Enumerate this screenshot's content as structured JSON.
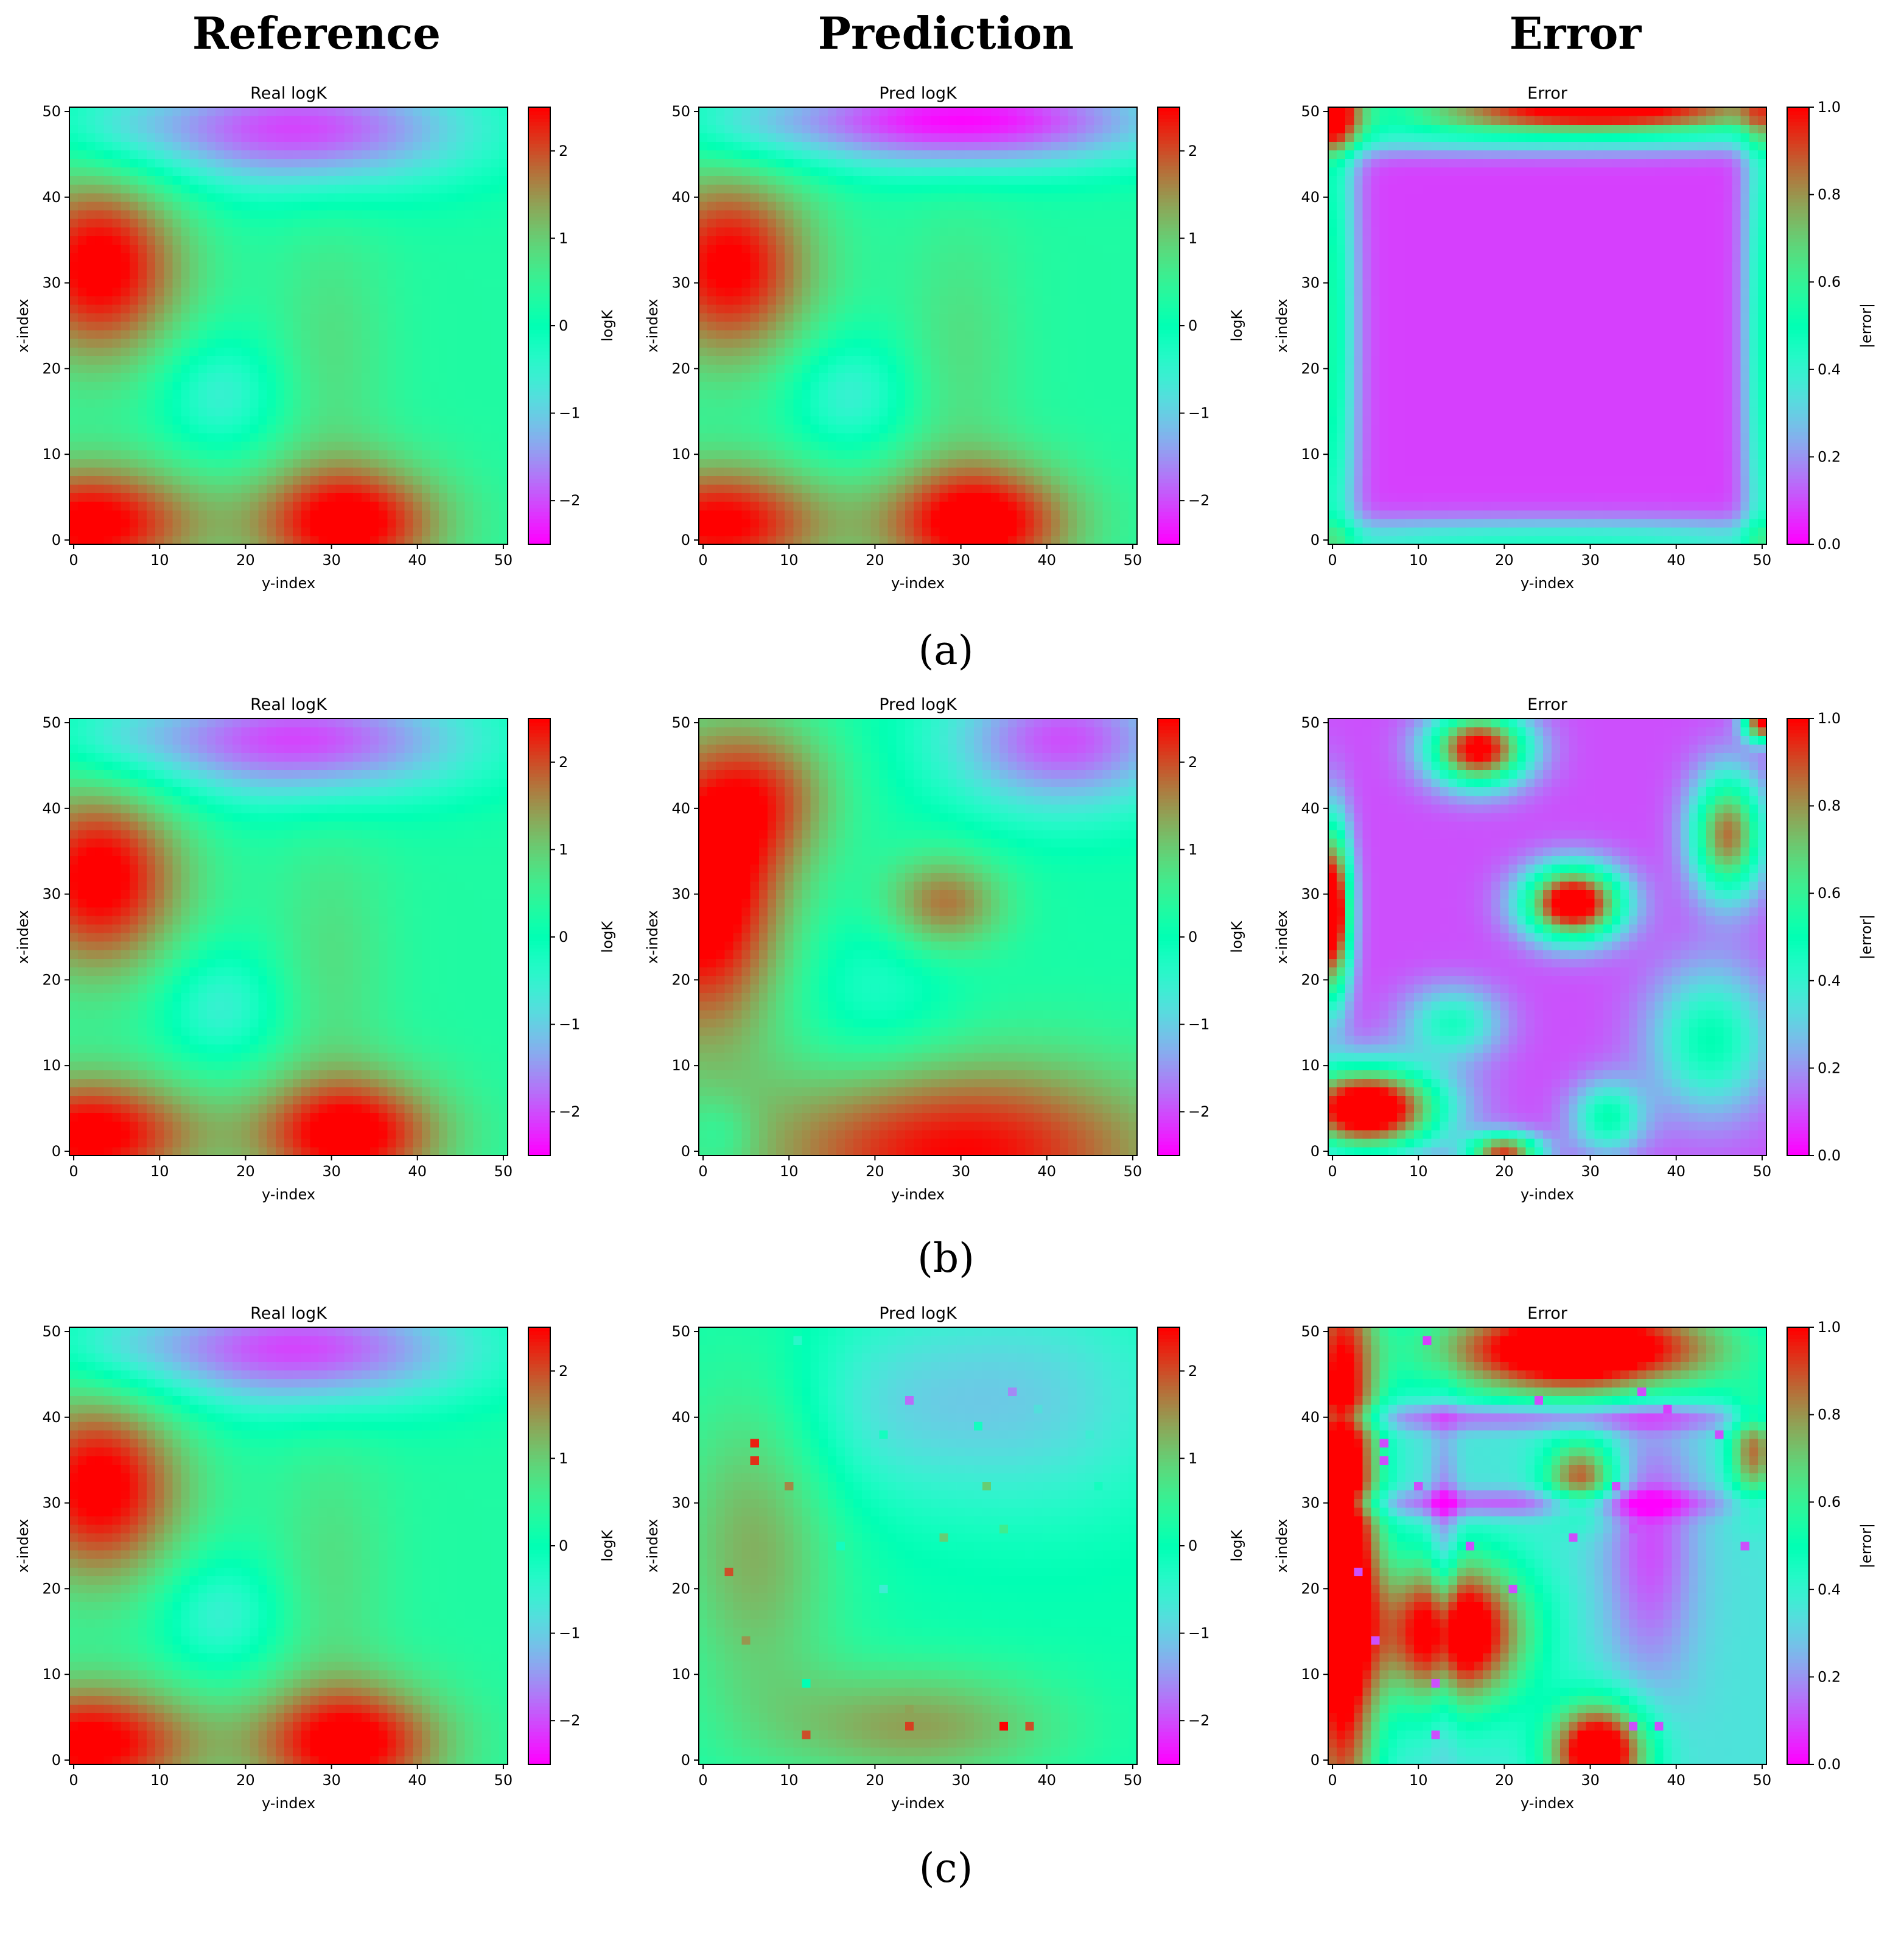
{
  "figure": {
    "column_headers": [
      "Reference",
      "Prediction",
      "Error"
    ],
    "row_labels": [
      "(a)",
      "(b)",
      "(c)"
    ]
  },
  "chart_data": [
    {
      "panel": "a-reference",
      "type": "heatmap",
      "title": "Real logK",
      "xlabel": "y-index",
      "ylabel": "x-index",
      "xlim": [
        0,
        50
      ],
      "ylim": [
        0,
        50
      ],
      "xticks": [
        0,
        10,
        20,
        30,
        40,
        50
      ],
      "yticks": [
        0,
        10,
        20,
        30,
        40,
        50
      ],
      "colormap": "rainbow",
      "colorbar": {
        "label": "logK",
        "range": [
          -2.5,
          2.5
        ],
        "ticks": [
          "−2",
          "−1",
          "0",
          "1",
          "2"
        ]
      },
      "field": "reference"
    },
    {
      "panel": "a-prediction",
      "type": "heatmap",
      "title": "Pred logK",
      "xlabel": "y-index",
      "ylabel": "x-index",
      "xlim": [
        0,
        50
      ],
      "ylim": [
        0,
        50
      ],
      "xticks": [
        0,
        10,
        20,
        30,
        40,
        50
      ],
      "yticks": [
        0,
        10,
        20,
        30,
        40,
        50
      ],
      "colormap": "rainbow",
      "colorbar": {
        "label": "logK",
        "range": [
          -2.5,
          2.5
        ],
        "ticks": [
          "−2",
          "−1",
          "0",
          "1",
          "2"
        ]
      },
      "field": "prediction_a"
    },
    {
      "panel": "a-error",
      "type": "heatmap",
      "title": "Error",
      "xlabel": "y-index",
      "ylabel": "x-index",
      "xlim": [
        0,
        50
      ],
      "ylim": [
        0,
        50
      ],
      "xticks": [
        0,
        10,
        20,
        30,
        40,
        50
      ],
      "yticks": [
        0,
        10,
        20,
        30,
        40,
        50
      ],
      "colormap": "rainbow",
      "colorbar": {
        "label": "|error|",
        "range": [
          0,
          1
        ],
        "ticks": [
          "0.0",
          "0.2",
          "0.4",
          "0.6",
          "0.8",
          "1.0"
        ]
      },
      "field": "error_a"
    },
    {
      "panel": "b-reference",
      "type": "heatmap",
      "title": "Real logK",
      "xlabel": "y-index",
      "ylabel": "x-index",
      "xlim": [
        0,
        50
      ],
      "ylim": [
        0,
        50
      ],
      "xticks": [
        0,
        10,
        20,
        30,
        40,
        50
      ],
      "yticks": [
        0,
        10,
        20,
        30,
        40,
        50
      ],
      "colormap": "rainbow",
      "colorbar": {
        "label": "logK",
        "range": [
          -2.5,
          2.5
        ],
        "ticks": [
          "−2",
          "−1",
          "0",
          "1",
          "2"
        ]
      },
      "field": "reference"
    },
    {
      "panel": "b-prediction",
      "type": "heatmap",
      "title": "Pred logK",
      "xlabel": "y-index",
      "ylabel": "x-index",
      "xlim": [
        0,
        50
      ],
      "ylim": [
        0,
        50
      ],
      "xticks": [
        0,
        10,
        20,
        30,
        40,
        50
      ],
      "yticks": [
        0,
        10,
        20,
        30,
        40,
        50
      ],
      "colormap": "rainbow",
      "colorbar": {
        "label": "logK",
        "range": [
          -2.5,
          2.5
        ],
        "ticks": [
          "−2",
          "−1",
          "0",
          "1",
          "2"
        ]
      },
      "field": "prediction_b"
    },
    {
      "panel": "b-error",
      "type": "heatmap",
      "title": "Error",
      "xlabel": "y-index",
      "ylabel": "x-index",
      "xlim": [
        0,
        50
      ],
      "ylim": [
        0,
        50
      ],
      "xticks": [
        0,
        10,
        20,
        30,
        40,
        50
      ],
      "yticks": [
        0,
        10,
        20,
        30,
        40,
        50
      ],
      "colormap": "rainbow",
      "colorbar": {
        "label": "|error|",
        "range": [
          0,
          1
        ],
        "ticks": [
          "0.0",
          "0.2",
          "0.4",
          "0.6",
          "0.8",
          "1.0"
        ]
      },
      "field": "error_b"
    },
    {
      "panel": "c-reference",
      "type": "heatmap",
      "title": "Real logK",
      "xlabel": "y-index",
      "ylabel": "x-index",
      "xlim": [
        0,
        50
      ],
      "ylim": [
        0,
        50
      ],
      "xticks": [
        0,
        10,
        20,
        30,
        40,
        50
      ],
      "yticks": [
        0,
        10,
        20,
        30,
        40,
        50
      ],
      "colormap": "rainbow",
      "colorbar": {
        "label": "logK",
        "range": [
          -2.5,
          2.5
        ],
        "ticks": [
          "−2",
          "−1",
          "0",
          "1",
          "2"
        ]
      },
      "field": "reference"
    },
    {
      "panel": "c-prediction",
      "type": "heatmap",
      "title": "Pred logK",
      "xlabel": "y-index",
      "ylabel": "x-index",
      "xlim": [
        0,
        50
      ],
      "ylim": [
        0,
        50
      ],
      "xticks": [
        0,
        10,
        20,
        30,
        40,
        50
      ],
      "yticks": [
        0,
        10,
        20,
        30,
        40,
        50
      ],
      "colormap": "rainbow",
      "colorbar": {
        "label": "logK",
        "range": [
          -2.5,
          2.5
        ],
        "ticks": [
          "−2",
          "−1",
          "0",
          "1",
          "2"
        ]
      },
      "field": "prediction_c"
    },
    {
      "panel": "c-error",
      "type": "heatmap",
      "title": "Error",
      "xlabel": "y-index",
      "ylabel": "x-index",
      "xlim": [
        0,
        50
      ],
      "ylim": [
        0,
        50
      ],
      "xticks": [
        0,
        10,
        20,
        30,
        40,
        50
      ],
      "yticks": [
        0,
        10,
        20,
        30,
        40,
        50
      ],
      "colormap": "rainbow",
      "colorbar": {
        "label": "|error|",
        "range": [
          0,
          1
        ],
        "ticks": [
          "0.0",
          "0.2",
          "0.4",
          "0.6",
          "0.8",
          "1.0"
        ]
      },
      "field": "error_c"
    }
  ],
  "fields": {
    "reference": {
      "base": 0.3,
      "blobs": [
        [
          3,
          32,
          7,
          8,
          2.4
        ],
        [
          2,
          2,
          9,
          5,
          2.4
        ],
        [
          32,
          2,
          8,
          5,
          2.4
        ],
        [
          30,
          22,
          5,
          12,
          0.5
        ],
        [
          17,
          17,
          5,
          5,
          -0.9
        ],
        [
          26,
          48,
          15,
          5,
          -2.4
        ],
        [
          5,
          48,
          6,
          3,
          -0.4
        ]
      ]
    },
    "prediction_a": {
      "base": 0.3,
      "blobs": [
        [
          3,
          32,
          7,
          8,
          2.3
        ],
        [
          2,
          2,
          9,
          5,
          2.3
        ],
        [
          32,
          2,
          8,
          5,
          2.5
        ],
        [
          30,
          22,
          5,
          12,
          0.5
        ],
        [
          17,
          17,
          5,
          5,
          -0.9
        ],
        [
          30,
          49,
          17,
          4,
          -2.8
        ],
        [
          5,
          48,
          6,
          3,
          -0.4
        ]
      ]
    },
    "prediction_b": {
      "base": 0.2,
      "blobs": [
        [
          0,
          30,
          7,
          12,
          2.8
        ],
        [
          8,
          42,
          6,
          6,
          1.2
        ],
        [
          28,
          29,
          5,
          4,
          1.6
        ],
        [
          20,
          18,
          7,
          7,
          -0.6
        ],
        [
          30,
          0,
          18,
          8,
          2.3
        ],
        [
          42,
          48,
          10,
          6,
          -2.2
        ],
        [
          2,
          2,
          3,
          3,
          -0.5
        ]
      ]
    },
    "prediction_c": {
      "base": 0.1,
      "blobs": [
        [
          6,
          25,
          7,
          14,
          1.2
        ],
        [
          25,
          4,
          12,
          5,
          1.3
        ],
        [
          40,
          42,
          12,
          10,
          -0.9
        ],
        [
          25,
          42,
          10,
          8,
          -0.5
        ],
        [
          18,
          40,
          7,
          8,
          -0.3
        ]
      ],
      "spots": [
        [
          11,
          49,
          -0.4
        ],
        [
          24,
          42,
          -1.8
        ],
        [
          36,
          43,
          -1.6
        ],
        [
          39,
          41,
          -0.8
        ],
        [
          21,
          38,
          -0.2
        ],
        [
          32,
          39,
          -0.2
        ],
        [
          45,
          38,
          -0.6
        ],
        [
          46,
          32,
          -0.2
        ],
        [
          6,
          37,
          2.3
        ],
        [
          6,
          35,
          2.2
        ],
        [
          10,
          32,
          1.6
        ],
        [
          33,
          32,
          1.0
        ],
        [
          28,
          26,
          1.0
        ],
        [
          35,
          27,
          0.6
        ],
        [
          16,
          25,
          -0.2
        ],
        [
          48,
          25,
          -0.1
        ],
        [
          3,
          22,
          2.0
        ],
        [
          21,
          20,
          -0.6
        ],
        [
          5,
          14,
          1.5
        ],
        [
          12,
          9,
          0.0
        ],
        [
          12,
          3,
          2.0
        ],
        [
          24,
          4,
          2.1
        ],
        [
          24,
          6,
          1.4
        ],
        [
          35,
          4,
          2.5
        ],
        [
          38,
          4,
          2.0
        ]
      ]
    },
    "error_a": {
      "base": 0.08,
      "blobs": [
        [
          31,
          50,
          18,
          1.5,
          0.95
        ],
        [
          0,
          25,
          2,
          30,
          0.45
        ],
        [
          50,
          25,
          1.6,
          30,
          0.4
        ],
        [
          25,
          0,
          30,
          1.8,
          0.35
        ],
        [
          25,
          47,
          30,
          1.5,
          0.3
        ],
        [
          0,
          50,
          3,
          3,
          0.5
        ]
      ]
    },
    "error_b": {
      "base": 0.1,
      "blobs": [
        [
          4,
          5,
          6,
          3.5,
          1.1
        ],
        [
          0,
          28,
          1.5,
          7,
          1.1
        ],
        [
          17,
          47,
          4,
          3,
          0.95
        ],
        [
          28,
          29,
          4,
          3,
          1.05
        ],
        [
          46,
          37,
          3,
          5,
          0.75
        ],
        [
          44,
          13,
          5,
          6,
          0.4
        ],
        [
          14,
          15,
          4,
          3,
          0.35
        ],
        [
          32,
          4,
          3,
          3,
          0.4
        ],
        [
          20,
          0,
          3,
          1.5,
          0.8
        ],
        [
          50,
          50,
          1.5,
          1.5,
          0.9
        ]
      ]
    },
    "error_c": {
      "base": 0.35,
      "blobs": [
        [
          1,
          25,
          3,
          25,
          0.9
        ],
        [
          14,
          15,
          6,
          6,
          0.85
        ],
        [
          29,
          48,
          12,
          4,
          0.9
        ],
        [
          31,
          1,
          4,
          4,
          0.85
        ],
        [
          29,
          33,
          3,
          3,
          0.55
        ],
        [
          49,
          36,
          2,
          4,
          0.5
        ],
        [
          37,
          25,
          4,
          12,
          -0.25
        ],
        [
          25,
          40,
          22,
          1.2,
          -0.28
        ],
        [
          20,
          30,
          20,
          1.2,
          -0.25
        ],
        [
          13,
          21,
          1.2,
          12,
          -0.25
        ]
      ],
      "spots": [
        [
          11,
          49,
          0.08
        ],
        [
          24,
          42,
          0.1
        ],
        [
          36,
          43,
          0.1
        ],
        [
          39,
          41,
          0.08
        ],
        [
          6,
          37,
          0.1
        ],
        [
          6,
          35,
          0.1
        ],
        [
          10,
          32,
          0.1
        ],
        [
          33,
          32,
          0.1
        ],
        [
          28,
          26,
          0.1
        ],
        [
          35,
          27,
          0.1
        ],
        [
          16,
          25,
          0.1
        ],
        [
          48,
          25,
          0.1
        ],
        [
          3,
          22,
          0.1
        ],
        [
          21,
          20,
          0.1
        ],
        [
          5,
          14,
          0.1
        ],
        [
          12,
          9,
          0.1
        ],
        [
          12,
          3,
          0.1
        ],
        [
          35,
          4,
          0.1
        ],
        [
          38,
          4,
          0.1
        ],
        [
          45,
          38,
          0.1
        ]
      ]
    }
  }
}
